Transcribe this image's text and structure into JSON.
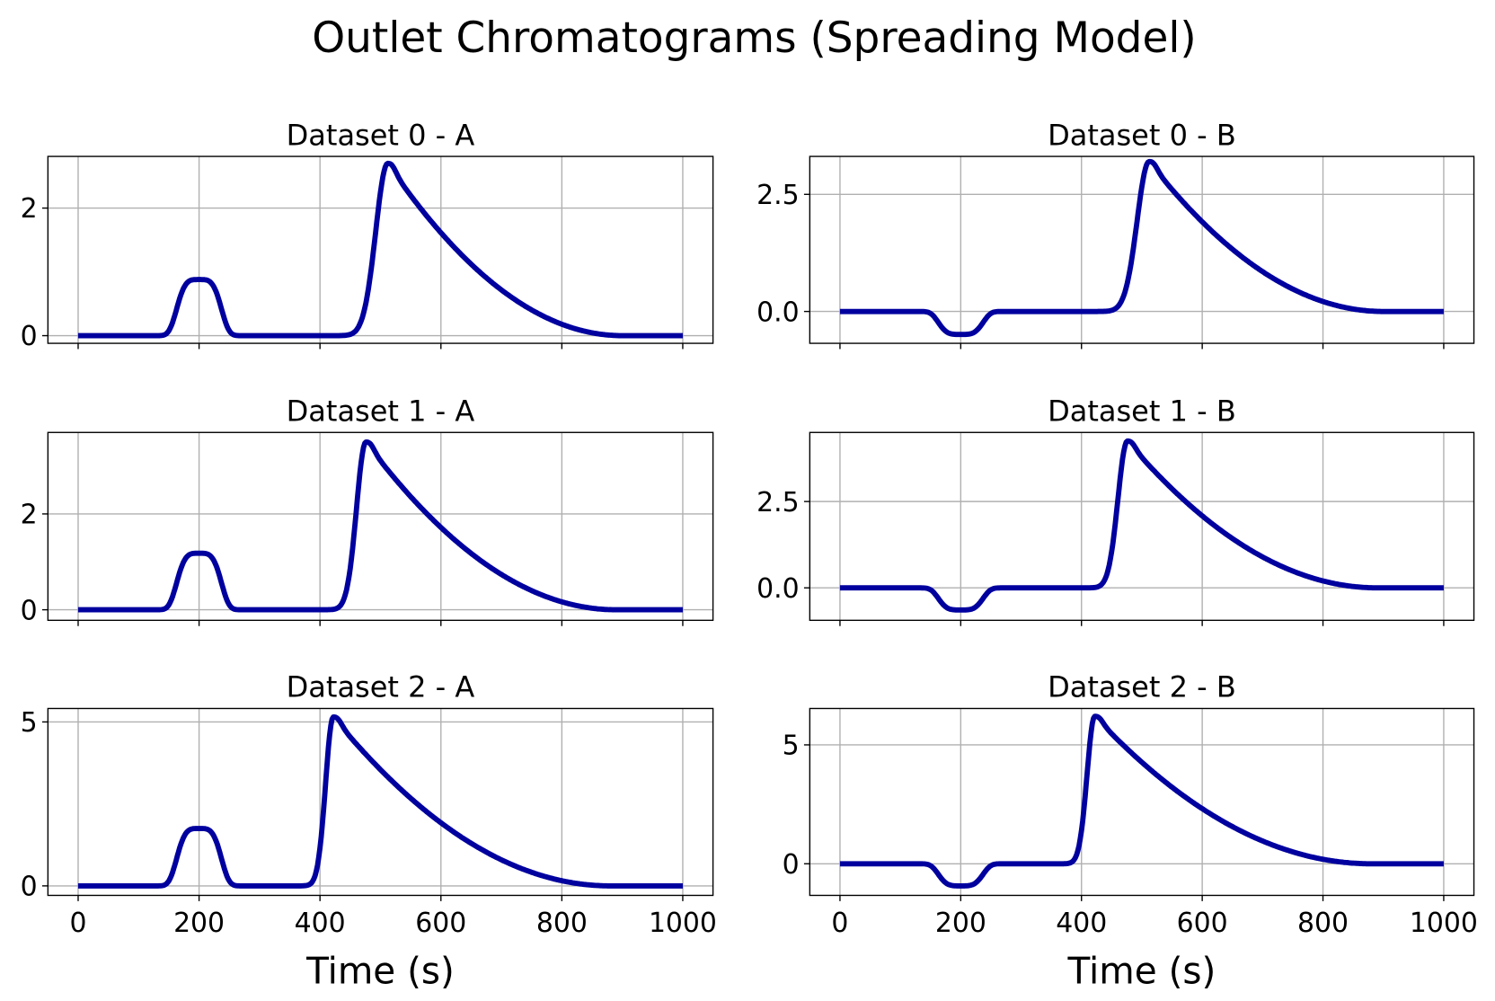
{
  "chart_data": {
    "type": "line",
    "title": "Outlet Chromatograms (Spreading Model)",
    "xlabel": "Time (s)",
    "xlim": [
      -50,
      1050
    ],
    "xticks": [
      0,
      200,
      400,
      600,
      800,
      1000
    ],
    "line_color": "#00009f",
    "grid": true,
    "panels": [
      {
        "title": "Dataset 0 - A",
        "ylim": [
          -0.12,
          2.81
        ],
        "yticks": [
          0,
          2
        ],
        "ytick_labels": [
          "0",
          "2"
        ],
        "small_peak": {
          "center": 200,
          "height": 0.88
        },
        "main_peak": {
          "time": 512,
          "height": 2.7,
          "rise_width": 28,
          "end": 900
        }
      },
      {
        "title": "Dataset 0 - B",
        "ylim": [
          -0.68,
          3.31
        ],
        "yticks": [
          0,
          2.5
        ],
        "ytick_labels": [
          "0.0",
          "2.5"
        ],
        "small_peak": {
          "center": 200,
          "height": -0.49
        },
        "main_peak": {
          "time": 512,
          "height": 3.2,
          "rise_width": 28,
          "end": 900
        }
      },
      {
        "title": "Dataset 1 - A",
        "ylim": [
          -0.22,
          3.7
        ],
        "yticks": [
          0,
          2
        ],
        "ytick_labels": [
          "0",
          "2"
        ],
        "small_peak": {
          "center": 200,
          "height": 1.18
        },
        "main_peak": {
          "time": 476,
          "height": 3.5,
          "rise_width": 22,
          "end": 890
        }
      },
      {
        "title": "Dataset 1 - B",
        "ylim": [
          -0.94,
          4.5
        ],
        "yticks": [
          0,
          2.5
        ],
        "ytick_labels": [
          "0.0",
          "2.5"
        ],
        "small_peak": {
          "center": 200,
          "height": -0.64
        },
        "main_peak": {
          "time": 476,
          "height": 4.25,
          "rise_width": 22,
          "end": 890
        }
      },
      {
        "title": "Dataset 2 - A",
        "ylim": [
          -0.29,
          5.41
        ],
        "yticks": [
          0,
          5
        ],
        "ytick_labels": [
          "0",
          "5"
        ],
        "small_peak": {
          "center": 200,
          "height": 1.75
        },
        "main_peak": {
          "time": 422,
          "height": 5.15,
          "rise_width": 18,
          "end": 880
        }
      },
      {
        "title": "Dataset 2 - B",
        "ylim": [
          -1.33,
          6.53
        ],
        "yticks": [
          0,
          5
        ],
        "ytick_labels": [
          "0",
          "5"
        ],
        "small_peak": {
          "center": 200,
          "height": -0.93
        },
        "main_peak": {
          "time": 422,
          "height": 6.2,
          "rise_width": 18,
          "end": 880
        }
      }
    ]
  }
}
